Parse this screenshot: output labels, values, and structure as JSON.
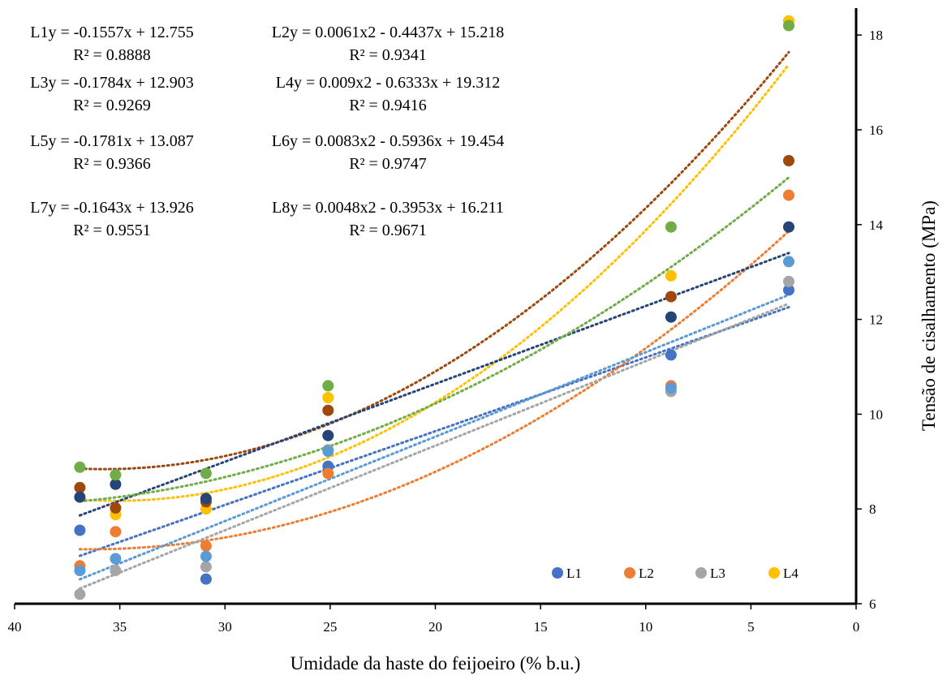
{
  "chart_data": {
    "type": "scatter",
    "title": "",
    "xlabel": "Umidade da haste do feijoeiro (% b.u.)",
    "ylabel": "Tensão de cisalhamento (MPa)",
    "xlim": [
      40,
      0
    ],
    "ylim": [
      6,
      18.5
    ],
    "x_reversed": true,
    "y_axis_position": "right",
    "xticks": [
      40,
      35,
      30,
      25,
      20,
      15,
      10,
      5,
      0
    ],
    "yticks": [
      6,
      8,
      10,
      12,
      14,
      16,
      18
    ],
    "grid": false,
    "legend_position": "bottom-right",
    "x": [
      36.9,
      35.2,
      30.9,
      25.1,
      8.8,
      3.2
    ],
    "series": [
      {
        "name": "L1",
        "color": "#4472C4",
        "values": [
          7.55,
          null,
          6.52,
          8.9,
          11.25,
          12.62
        ],
        "trend": {
          "type": "linear",
          "a": -0.1557,
          "b": 12.755
        },
        "equation": "L1y = -0.1557x + 12.755",
        "r2": "R² = 0.8888"
      },
      {
        "name": "L2",
        "color": "#ED7D31",
        "values": [
          6.8,
          7.52,
          7.22,
          8.75,
          10.6,
          14.62
        ],
        "trend": {
          "type": "poly2",
          "a": 0.0061,
          "b": -0.4437,
          "c": 15.218
        },
        "equation": "L2y = 0.0061x2 - 0.4437x + 15.218",
        "r2": "R² = 0.9341"
      },
      {
        "name": "L3",
        "color": "#A5A5A5",
        "values": [
          6.2,
          6.7,
          6.78,
          9.25,
          10.48,
          12.8
        ],
        "trend": {
          "type": "linear",
          "a": -0.1784,
          "b": 12.903
        },
        "equation": "L3y = -0.1784x + 12.903",
        "r2": "R² = 0.9269"
      },
      {
        "name": "L4",
        "color": "#FFC000",
        "values": [
          null,
          7.88,
          8.0,
          10.35,
          12.92,
          18.3
        ],
        "trend": {
          "type": "poly2",
          "a": 0.009,
          "b": -0.6333,
          "c": 19.312
        },
        "equation": "L4y = 0.009x2 - 0.6333x + 19.312",
        "r2": "R² = 0.9416"
      },
      {
        "name": "L5",
        "color": "#5B9BD5",
        "values": [
          6.7,
          6.95,
          7.0,
          9.22,
          10.55,
          13.22
        ],
        "trend": {
          "type": "linear",
          "a": -0.1781,
          "b": 13.087
        },
        "equation": "L5y = -0.1781x + 13.087",
        "r2": "R² = 0.9366"
      },
      {
        "name": "L6",
        "color": "#9E480E",
        "values": [
          8.45,
          8.02,
          8.15,
          10.08,
          12.48,
          15.35
        ],
        "trend": {
          "type": "poly2",
          "a": 0.0083,
          "b": -0.5936,
          "c": 19.454
        },
        "equation": "L6y = 0.0083x2 - 0.5936x + 19.454",
        "r2": "R² = 0.9747"
      },
      {
        "name": "L7",
        "color": "#264478",
        "values": [
          8.25,
          8.52,
          8.22,
          9.55,
          12.05,
          13.95
        ],
        "trend": {
          "type": "linear",
          "a": -0.1643,
          "b": 13.926
        },
        "equation": "L7y = -0.1643x + 13.926",
        "r2": "R² = 0.9551"
      },
      {
        "name": "L8",
        "color": "#70AD47",
        "values": [
          8.88,
          8.72,
          8.75,
          10.6,
          13.95,
          18.2
        ],
        "trend": {
          "type": "poly2",
          "a": 0.0048,
          "b": -0.3953,
          "c": 16.211
        },
        "equation": "L8y = 0.0048x2 - 0.3953x + 16.211",
        "r2": "R² = 0.9671"
      }
    ],
    "legend_entries": [
      "L1",
      "L2",
      "L3",
      "L4"
    ]
  }
}
